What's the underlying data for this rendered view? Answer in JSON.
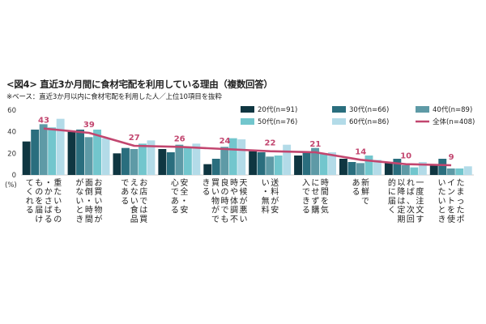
{
  "title": "<図4> 直近3か月間に食材宅配を利用している理由（複数回答）",
  "subtitle": "※ベース：直近3か月以内に食材宅配を利用した人／上位10項目を抜粋",
  "colors": {
    "20s": "#0f3641",
    "30s": "#2a6e7e",
    "40s": "#5e9aa6",
    "50s": "#72c6cd",
    "60s": "#b3dbe8",
    "total": "#c2466f"
  },
  "chart_data": {
    "type": "bar",
    "unit_label": "(%)",
    "ylim": [
      0,
      60
    ],
    "yticks": [
      0,
      20,
      40,
      60
    ],
    "grid": false,
    "legend_position": "top-right",
    "categories": [
      "重たいもの・かさばるものを届けてくれる",
      "お買い物が面倒・時間がないとき",
      "お店では買えない食品である",
      "安全・安心である",
      "天候が悪い時や体調不良の時でも買い物ができる",
      "送料が安い・無料",
      "時間を気にせず購入できる",
      "新鮮である",
      "一度注文すれば、次回以降は定期的に届く",
      "たまったポイントを使いたいとき"
    ],
    "series": [
      {
        "name": "20代(n=91)",
        "color_key": "20s",
        "values": [
          31,
          40,
          20,
          24,
          10,
          22,
          18,
          15,
          11,
          9
        ]
      },
      {
        "name": "30代(n=66)",
        "color_key": "30s",
        "values": [
          42,
          42,
          25,
          21,
          15,
          21,
          21,
          12,
          15,
          15
        ]
      },
      {
        "name": "40代(n=89)",
        "color_key": "40s",
        "values": [
          47,
          35,
          24,
          28,
          26,
          17,
          25,
          11,
          9,
          6
        ]
      },
      {
        "name": "50代(n=76)",
        "color_key": "50s",
        "values": [
          44,
          42,
          29,
          25,
          34,
          18,
          20,
          18,
          7,
          6
        ]
      },
      {
        "name": "60代(n=86)",
        "color_key": "60s",
        "values": [
          52,
          34,
          32,
          29,
          33,
          28,
          21,
          14,
          12,
          8
        ]
      }
    ],
    "line": {
      "name": "全体(n=408)",
      "color_key": "total",
      "values": [
        43,
        39,
        27,
        26,
        24,
        22,
        21,
        14,
        10,
        9
      ]
    }
  }
}
